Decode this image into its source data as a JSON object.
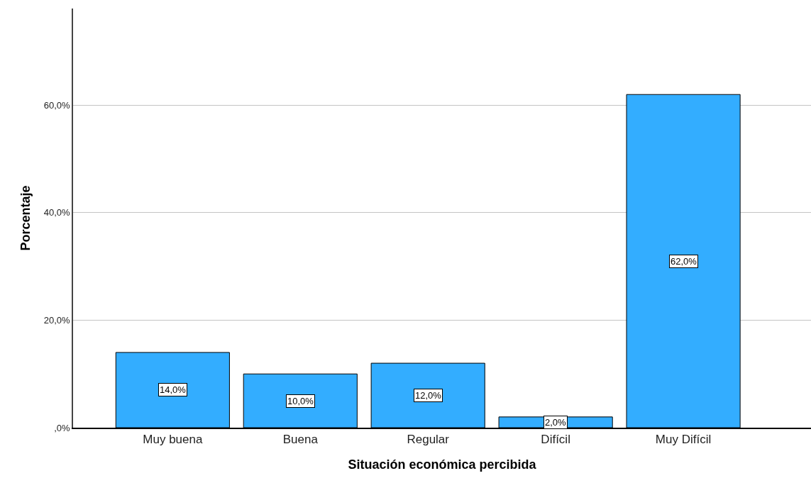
{
  "chart_data": {
    "type": "bar",
    "xlabel": "Situación económica percibida",
    "ylabel": "Porcentaje",
    "categories": [
      "Muy buena",
      "Buena",
      "Regular",
      "Difícil",
      "Muy Difícil"
    ],
    "values": [
      14,
      10,
      12,
      2,
      62
    ],
    "value_labels": [
      "14,0%",
      "10,0%",
      "12,0%",
      "2,0%",
      "62,0%"
    ],
    "color": "#33adff",
    "ylim": [
      0,
      78
    ],
    "yticks": [
      {
        "value": 0,
        "label": ",0%"
      },
      {
        "value": 20,
        "label": "20,0%"
      },
      {
        "value": 40,
        "label": "40,0%"
      },
      {
        "value": 60,
        "label": "60,0%"
      }
    ],
    "grid": "y"
  }
}
